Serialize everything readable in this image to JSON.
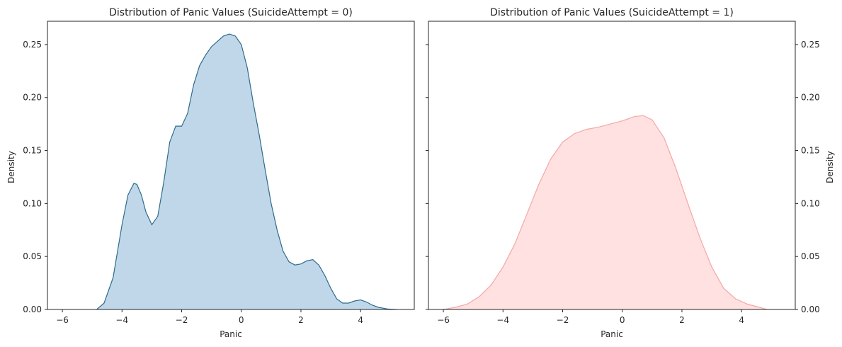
{
  "chart_data": [
    {
      "type": "area",
      "title": "Distribution of Panic Values (SuicideAttempt = 0)",
      "xlabel": "Panic",
      "ylabel": "Density",
      "xlim": [
        -6.5,
        5.8
      ],
      "ylim": [
        0,
        0.272
      ],
      "xticks": [
        "−6",
        "−4",
        "−2",
        "0",
        "2",
        "4"
      ],
      "yticks": [
        "0.00",
        "0.05",
        "0.10",
        "0.15",
        "0.20",
        "0.25"
      ],
      "ytick_side": "left",
      "fill_color": "#c0d7ea",
      "line_color": "#2e6b8c",
      "grid": false,
      "series": [
        {
          "x": [
            -4.85,
            -4.6,
            -4.3,
            -4.0,
            -3.8,
            -3.6,
            -3.5,
            -3.35,
            -3.2,
            -3.0,
            -2.8,
            -2.6,
            -2.4,
            -2.2,
            -2.0,
            -1.8,
            -1.6,
            -1.4,
            -1.2,
            -1.0,
            -0.8,
            -0.6,
            -0.4,
            -0.2,
            0.0,
            0.2,
            0.4,
            0.6,
            0.8,
            1.0,
            1.2,
            1.4,
            1.6,
            1.8,
            2.0,
            2.2,
            2.4,
            2.6,
            2.8,
            3.0,
            3.2,
            3.4,
            3.6,
            3.8,
            4.0,
            4.2,
            4.4,
            4.6,
            4.9,
            5.2
          ],
          "y": [
            0.0,
            0.006,
            0.03,
            0.08,
            0.108,
            0.119,
            0.118,
            0.108,
            0.092,
            0.08,
            0.088,
            0.12,
            0.158,
            0.173,
            0.173,
            0.185,
            0.212,
            0.23,
            0.24,
            0.248,
            0.253,
            0.258,
            0.26,
            0.258,
            0.25,
            0.228,
            0.195,
            0.165,
            0.132,
            0.1,
            0.075,
            0.055,
            0.045,
            0.042,
            0.043,
            0.046,
            0.047,
            0.042,
            0.032,
            0.02,
            0.01,
            0.006,
            0.006,
            0.008,
            0.009,
            0.007,
            0.004,
            0.002,
            0.0005,
            0.0
          ]
        }
      ]
    },
    {
      "type": "area",
      "title": "Distribution of Panic Values (SuicideAttempt = 1)",
      "xlabel": "Panic",
      "ylabel": "Density",
      "xlim": [
        -6.5,
        5.8
      ],
      "ylim": [
        0,
        0.272
      ],
      "xticks": [
        "−6",
        "−4",
        "−2",
        "0",
        "2",
        "4"
      ],
      "yticks": [
        "0.00",
        "0.05",
        "0.10",
        "0.15",
        "0.20",
        "0.25"
      ],
      "ytick_side": "right",
      "fill_color": "#fee1e0",
      "line_color": "#f4a7a5",
      "grid": false,
      "series": [
        {
          "x": [
            -6.0,
            -5.6,
            -5.2,
            -4.8,
            -4.4,
            -4.0,
            -3.6,
            -3.2,
            -2.8,
            -2.4,
            -2.0,
            -1.6,
            -1.2,
            -0.8,
            -0.4,
            0.0,
            0.4,
            0.7,
            1.0,
            1.4,
            1.8,
            2.2,
            2.6,
            3.0,
            3.4,
            3.8,
            4.2,
            4.6,
            4.85
          ],
          "y": [
            0.0,
            0.002,
            0.005,
            0.012,
            0.023,
            0.04,
            0.062,
            0.09,
            0.118,
            0.142,
            0.158,
            0.166,
            0.17,
            0.172,
            0.175,
            0.178,
            0.182,
            0.183,
            0.179,
            0.162,
            0.133,
            0.1,
            0.068,
            0.04,
            0.02,
            0.01,
            0.005,
            0.002,
            0.0
          ]
        }
      ]
    }
  ]
}
